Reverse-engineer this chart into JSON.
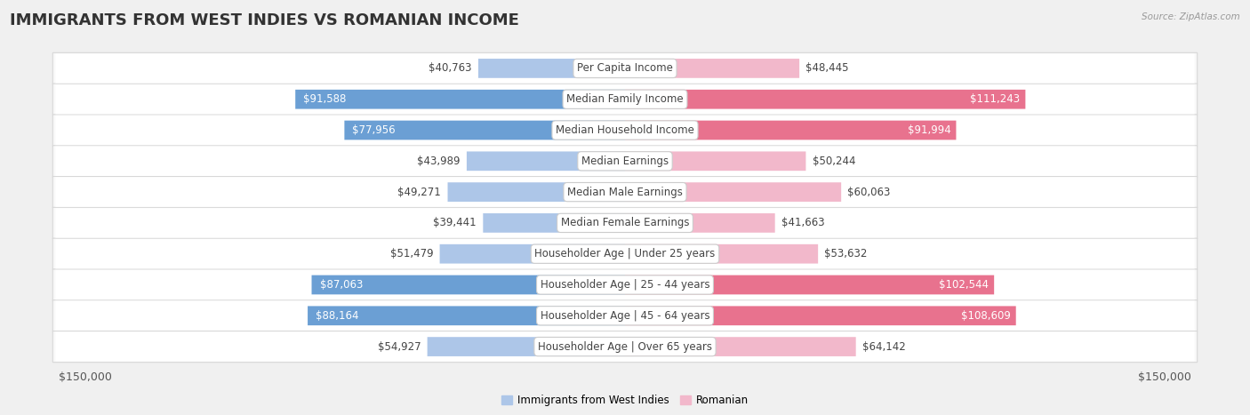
{
  "title": "IMMIGRANTS FROM WEST INDIES VS ROMANIAN INCOME",
  "source": "Source: ZipAtlas.com",
  "categories": [
    "Per Capita Income",
    "Median Family Income",
    "Median Household Income",
    "Median Earnings",
    "Median Male Earnings",
    "Median Female Earnings",
    "Householder Age | Under 25 years",
    "Householder Age | 25 - 44 years",
    "Householder Age | 45 - 64 years",
    "Householder Age | Over 65 years"
  ],
  "west_indies_values": [
    40763,
    91588,
    77956,
    43989,
    49271,
    39441,
    51479,
    87063,
    88164,
    54927
  ],
  "romanian_values": [
    48445,
    111243,
    91994,
    50244,
    60063,
    41663,
    53632,
    102544,
    108609,
    64142
  ],
  "west_indies_labels": [
    "$40,763",
    "$91,588",
    "$77,956",
    "$43,989",
    "$49,271",
    "$39,441",
    "$51,479",
    "$87,063",
    "$88,164",
    "$54,927"
  ],
  "romanian_labels": [
    "$48,445",
    "$111,243",
    "$91,994",
    "$50,244",
    "$60,063",
    "$41,663",
    "$53,632",
    "$102,544",
    "$108,609",
    "$64,142"
  ],
  "west_indies_color_light": "#adc6e8",
  "west_indies_color_dark": "#6b9fd4",
  "romanian_color_light": "#f2b8cb",
  "romanian_color_dark": "#e8728e",
  "max_value": 150000,
  "legend_west_indies": "Immigrants from West Indies",
  "legend_romanian": "Romanian",
  "bar_height": 0.62,
  "background_color": "#f0f0f0",
  "row_bg_color": "#ffffff",
  "title_fontsize": 13,
  "label_fontsize": 8.5,
  "axis_label_fontsize": 9,
  "wi_dark_threshold": 70000,
  "ro_dark_threshold": 88000
}
